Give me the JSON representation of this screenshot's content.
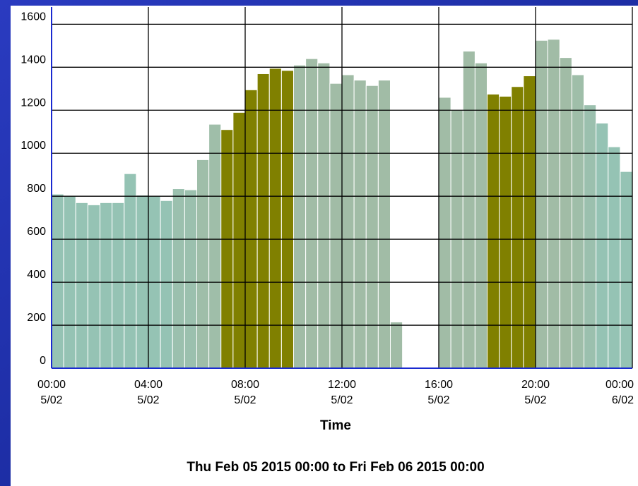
{
  "chart_data": {
    "type": "histogram",
    "xlabel": "Time",
    "subtitle": "Thu Feb 05 2015 00:00 to Fri Feb 06 2015 00:00",
    "bins": [
      0,
      0.5,
      1,
      1.5,
      2,
      2.5,
      3,
      3.5,
      4,
      4.5,
      5,
      5.5,
      6,
      6.5,
      7,
      7.5,
      8,
      8.5,
      9,
      9.5,
      10,
      10.5,
      11,
      11.5,
      12,
      12.5,
      13,
      13.5,
      14,
      14.5,
      15,
      15.5,
      16,
      16.5,
      17,
      17.5,
      18,
      18.5,
      19,
      19.5,
      20,
      20.5,
      21,
      21.5,
      22,
      22.5,
      23,
      23.5,
      24
    ],
    "values": [
      810,
      800,
      770,
      760,
      770,
      770,
      905,
      805,
      800,
      780,
      835,
      830,
      970,
      1135,
      1110,
      1190,
      1295,
      1370,
      1395,
      1385,
      1410,
      1440,
      1420,
      1325,
      1365,
      1340,
      1315,
      1340,
      215,
      null,
      null,
      null,
      1260,
      1200,
      1475,
      1420,
      1275,
      1265,
      1310,
      1360,
      1525,
      1530,
      1445,
      1365,
      1225,
      1140,
      1030,
      915
    ],
    "colors": [
      "#95c3b4",
      "#95c3b4",
      "#95c3b4",
      "#95c3b4",
      "#95c3b4",
      "#95c3b4",
      "#95c3b4",
      "#95c3b4",
      "#95c3b4",
      "#95c3b4",
      "#9bc0ae",
      "#9bc0ae",
      "#9fbea9",
      "#9fbea9",
      "#808000",
      "#808000",
      "#808000",
      "#808000",
      "#808000",
      "#808000",
      "#a1bca6",
      "#a1bca6",
      "#a1bca6",
      "#a1bca6",
      "#a1bca6",
      "#a1bca6",
      "#a1bca6",
      "#a1bca6",
      "#a1bca6",
      "#a1bca6",
      "#a1bca6",
      "#a1bca6",
      "#a1bca6",
      "#a1bca6",
      "#a1bca6",
      "#a1bca6",
      "#808000",
      "#808000",
      "#808000",
      "#808000",
      "#a1bca6",
      "#a1bca6",
      "#a1bca6",
      "#9fbea9",
      "#9bc0ae",
      "#95c3b4",
      "#95c3b4",
      "#95c3b4"
    ],
    "xlim": [
      0,
      24
    ],
    "xticks": [
      {
        "value": 0,
        "label": [
          "00:00",
          "5/02"
        ]
      },
      {
        "value": 4,
        "label": [
          "04:00",
          "5/02"
        ]
      },
      {
        "value": 8,
        "label": [
          "08:00",
          "5/02"
        ]
      },
      {
        "value": 12,
        "label": [
          "12:00",
          "5/02"
        ]
      },
      {
        "value": 16,
        "label": [
          "16:00",
          "5/02"
        ]
      },
      {
        "value": 20,
        "label": [
          "20:00",
          "5/02"
        ]
      },
      {
        "value": 24,
        "label": [
          "00:00",
          "6/02"
        ]
      }
    ],
    "ylim": [
      0,
      1680
    ],
    "yticks": [
      0,
      200,
      400,
      600,
      800,
      1000,
      1200,
      1400,
      1600
    ],
    "grid": true
  }
}
